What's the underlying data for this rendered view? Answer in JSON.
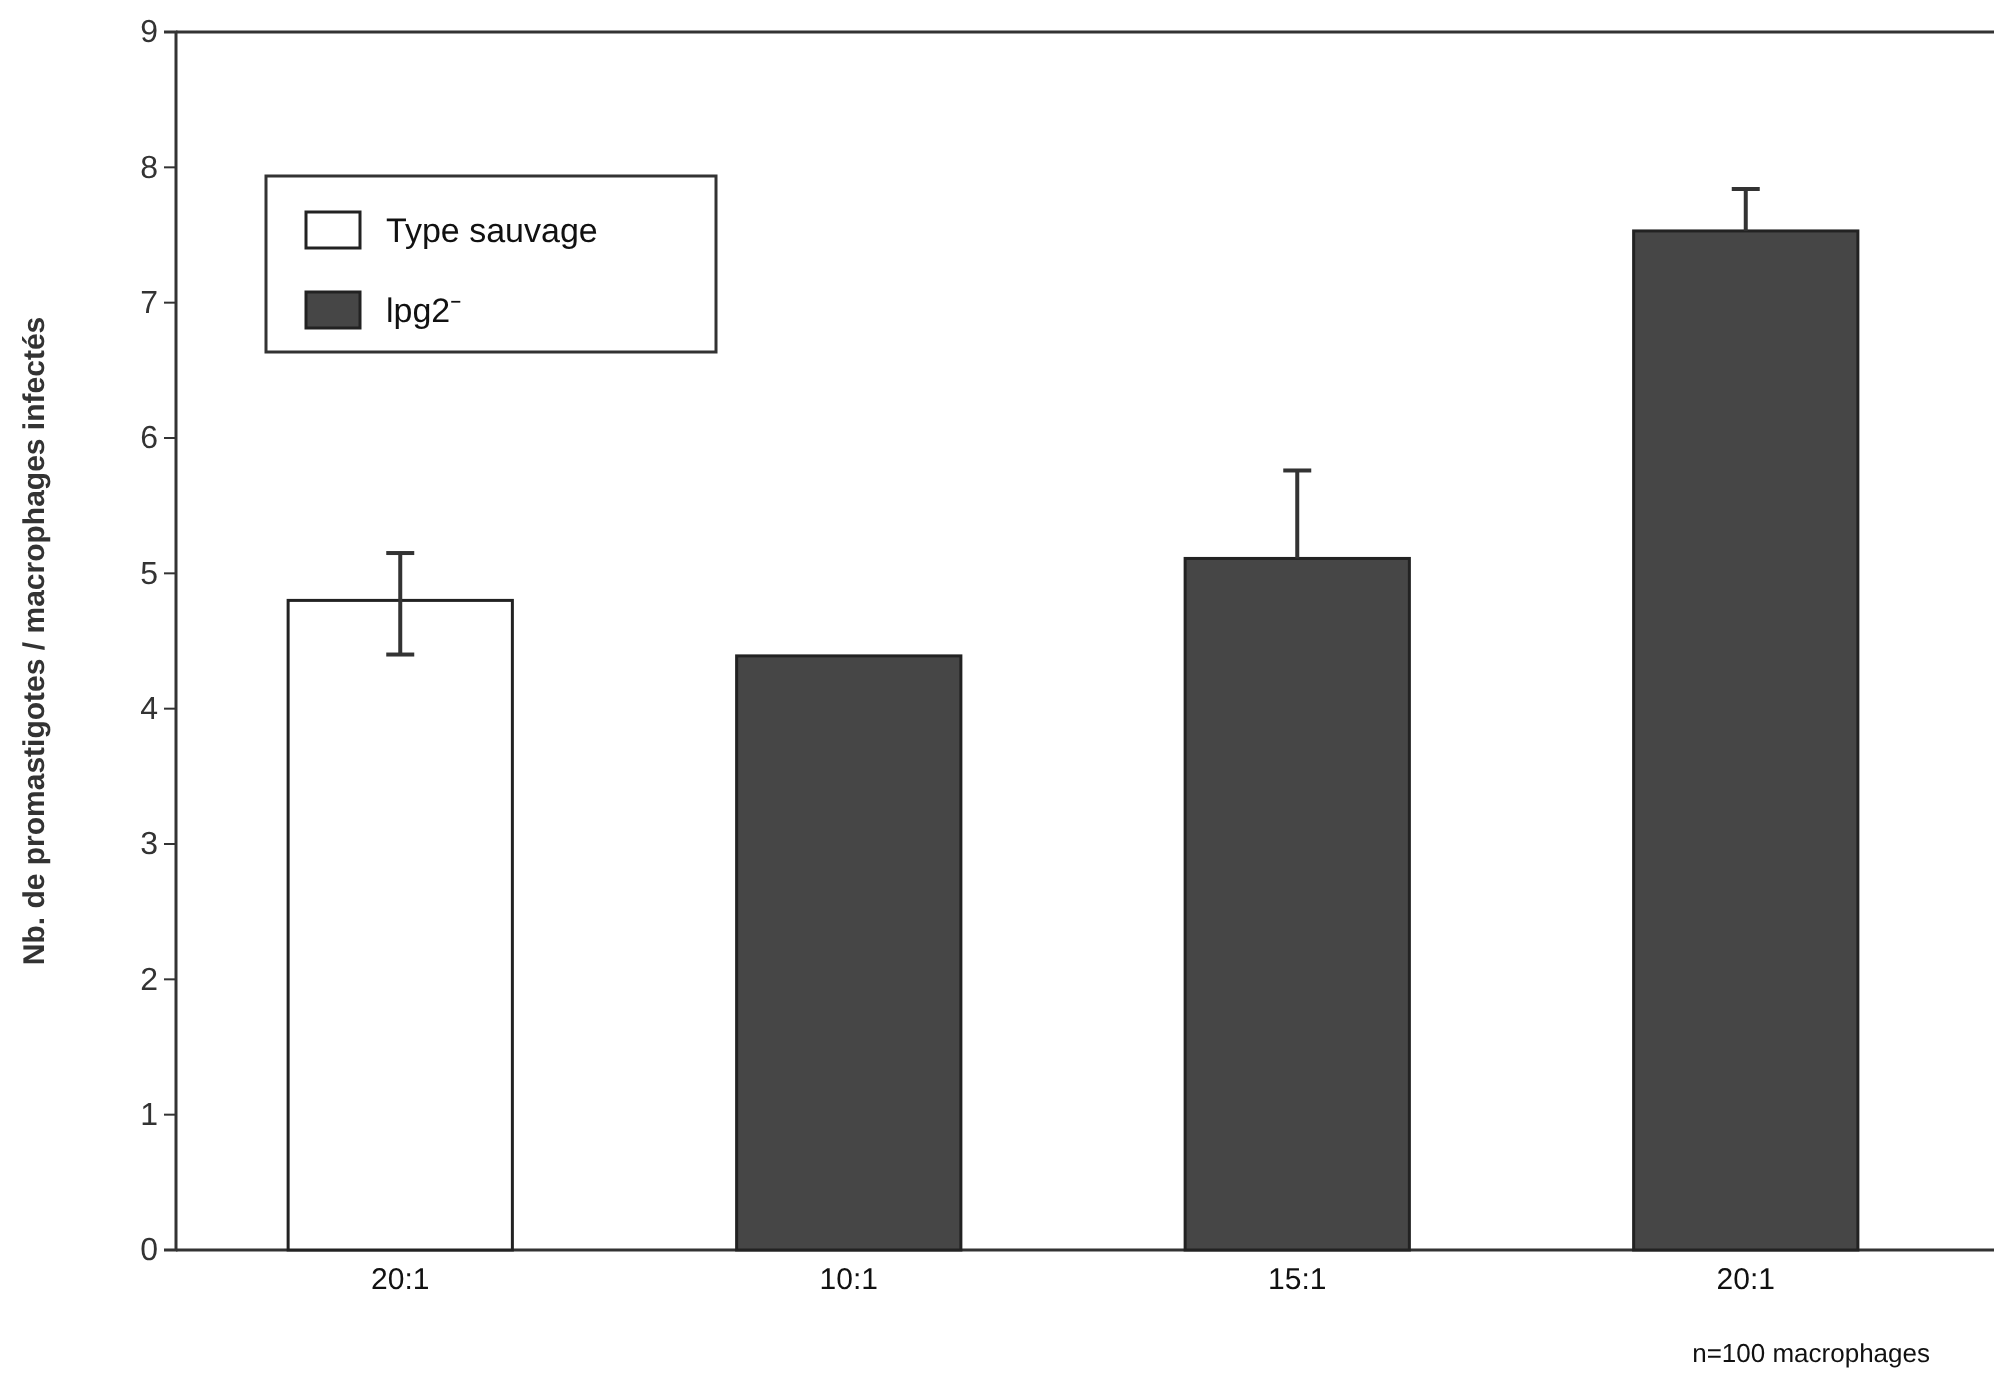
{
  "chart_data": {
    "type": "bar",
    "ylabel": "Nb. de promastigotes / macrophages infectés",
    "categories": [
      "20:1",
      "10:1",
      "15:1",
      "20:1"
    ],
    "series": [
      {
        "name": "Type sauvage",
        "color": "#ffffff",
        "values": [
          4.8,
          null,
          null,
          null
        ],
        "errors": [
          [
            4.4,
            5.15
          ],
          null,
          null,
          null
        ]
      },
      {
        "name": "lpg2⁻",
        "color": "#464646",
        "values": [
          null,
          4.39,
          5.11,
          7.53
        ],
        "errors": [
          null,
          null,
          [
            5.11,
            5.76
          ],
          [
            7.53,
            7.84
          ]
        ]
      }
    ],
    "ylim": [
      0,
      9
    ],
    "yticks": [
      0,
      1,
      2,
      3,
      4,
      5,
      6,
      7,
      8,
      9
    ],
    "legend": "top left",
    "annotations": [
      "n=100 macrophages"
    ]
  }
}
